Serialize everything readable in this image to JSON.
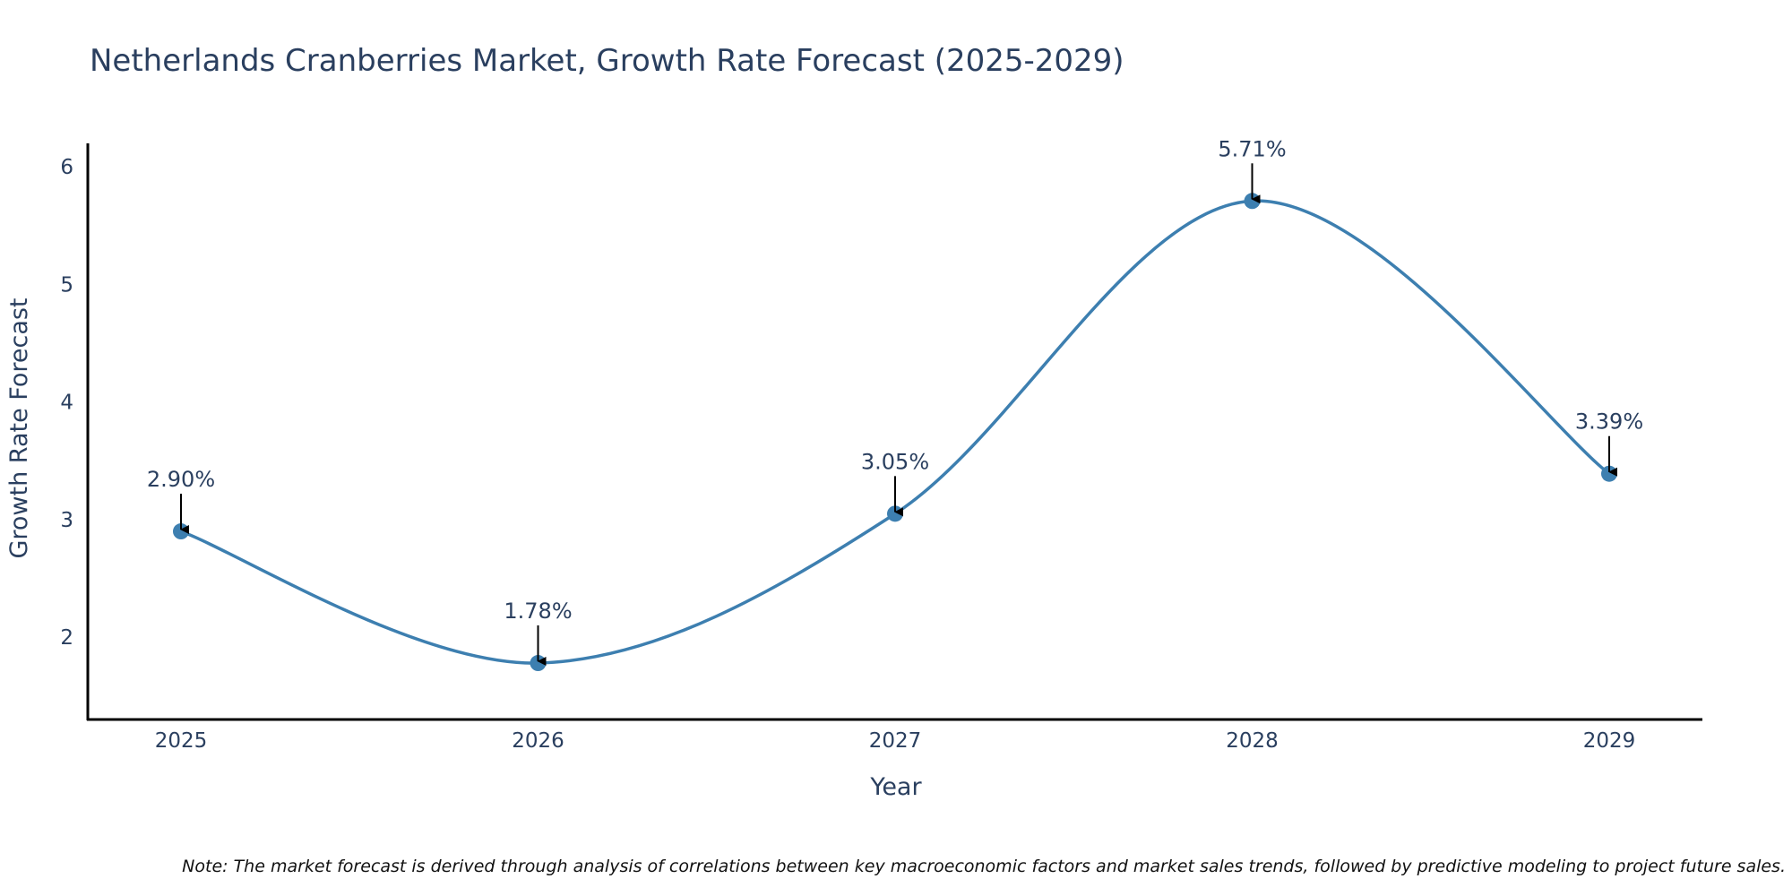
{
  "chart_data": {
    "type": "line",
    "title": "Netherlands Cranberries Market, Growth Rate Forecast (2025-2029)",
    "xlabel": "Year",
    "ylabel": "Growth Rate Forecast",
    "categories": [
      "2025",
      "2026",
      "2027",
      "2028",
      "2029"
    ],
    "values": [
      2.9,
      1.78,
      3.05,
      5.71,
      3.39
    ],
    "data_labels": [
      "2.90%",
      "1.78%",
      "3.05%",
      "5.71%",
      "3.39%"
    ],
    "yticks": [
      2,
      3,
      4,
      5,
      6
    ],
    "ylim": [
      1.3,
      6.2
    ],
    "grid": false,
    "line_shape": "spline",
    "line_color": "#3d7fb0",
    "marker_color": "#3d7fb0",
    "annotation_arrow_color": "#000000",
    "note": "Note: The market forecast is derived through analysis of correlations between key macroeconomic factors and market sales trends, followed by predictive modeling to project future sales."
  }
}
